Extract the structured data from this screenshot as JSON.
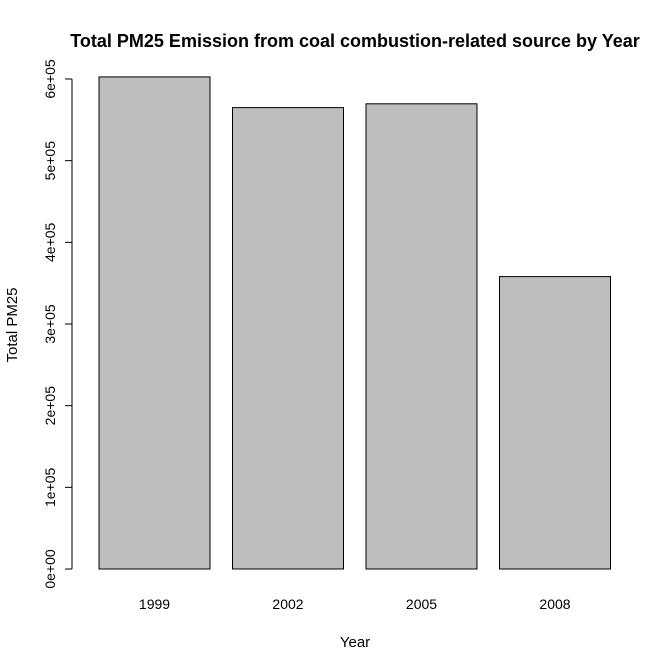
{
  "chart_data": {
    "type": "bar",
    "title": "Total PM25 Emission from coal combustion-related source by Year",
    "xlabel": "Year",
    "ylabel": "Total PM25",
    "categories": [
      "1999",
      "2002",
      "2005",
      "2008"
    ],
    "values": [
      602624,
      564941,
      569655,
      358084
    ],
    "ylim": [
      0,
      600000
    ],
    "yticks": [
      0,
      100000,
      200000,
      300000,
      400000,
      500000,
      600000
    ],
    "ytick_labels": [
      "0e+00",
      "1e+05",
      "2e+05",
      "3e+05",
      "4e+05",
      "5e+05",
      "6e+05"
    ],
    "bar_color": "#bebebe",
    "grid": false,
    "legend": "none"
  }
}
